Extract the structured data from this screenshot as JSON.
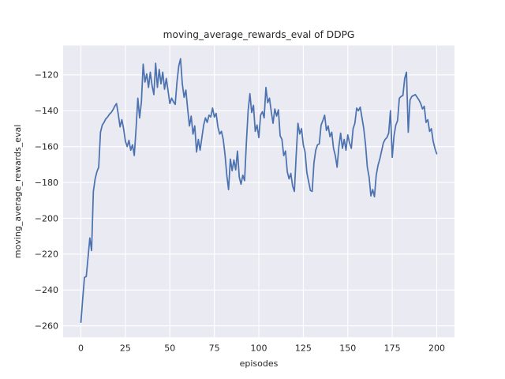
{
  "figure": {
    "title": "moving_average_rewards_eval of DDPG",
    "background": "#ffffff"
  },
  "chart_data": {
    "type": "line",
    "title": "moving_average_rewards_eval of DDPG",
    "xlabel": "episodes",
    "ylabel": "moving_average_rewards_eval",
    "x_ticks": [
      0,
      25,
      50,
      75,
      100,
      125,
      150,
      175,
      200
    ],
    "y_ticks": [
      -120,
      -140,
      -160,
      -180,
      -200,
      -220,
      -240,
      -260
    ],
    "xlim": [
      -10,
      210
    ],
    "ylim": [
      -266.4,
      -103.6
    ],
    "grid": true,
    "legend_position": "none",
    "plot_background": "#eaeaf2",
    "grid_color": "#ffffff",
    "line_color": "#4c72b0",
    "series": [
      {
        "name": "moving_average_rewards_eval",
        "x_start": 0,
        "x_step": 1,
        "values": [
          -258,
          -245,
          -233,
          -232.5,
          -222,
          -211,
          -218,
          -185,
          -178,
          -174,
          -171.5,
          -152,
          -148,
          -146.5,
          -144.5,
          -143.5,
          -142,
          -141,
          -139.5,
          -137.5,
          -136,
          -142,
          -149,
          -145,
          -150,
          -157,
          -160,
          -156.5,
          -162,
          -159,
          -165,
          -150,
          -133,
          -144,
          -135,
          -114,
          -124,
          -119.5,
          -127,
          -118.5,
          -126,
          -131,
          -113.5,
          -127,
          -117,
          -125,
          -118.5,
          -128,
          -122,
          -129,
          -136,
          -133,
          -135,
          -136.5,
          -124,
          -115,
          -111,
          -125,
          -132.5,
          -128.5,
          -139,
          -148.5,
          -143,
          -153,
          -148.5,
          -163,
          -156,
          -162,
          -155,
          -148,
          -144,
          -146.5,
          -142.5,
          -143.5,
          -138.5,
          -143.5,
          -141.5,
          -149,
          -153,
          -151.5,
          -156,
          -164.5,
          -176,
          -184,
          -167,
          -173.5,
          -167.5,
          -173,
          -162.5,
          -177,
          -181,
          -176,
          -179,
          -158,
          -140,
          -130.5,
          -141,
          -137,
          -151.5,
          -148,
          -155,
          -142.5,
          -140.5,
          -144,
          -127,
          -135.5,
          -133,
          -140.5,
          -147,
          -139,
          -143,
          -139.5,
          -154,
          -156,
          -165,
          -162.5,
          -174,
          -178,
          -175,
          -182,
          -185,
          -165,
          -147,
          -153,
          -150,
          -159,
          -163,
          -174.5,
          -179.5,
          -184.5,
          -185,
          -169,
          -162,
          -159,
          -158.5,
          -148,
          -145.5,
          -142.5,
          -151,
          -148.5,
          -154.5,
          -152,
          -161,
          -165,
          -171.5,
          -160,
          -152.5,
          -161,
          -156,
          -162,
          -153.5,
          -158,
          -161,
          -150,
          -147,
          -138.5,
          -140,
          -138,
          -144,
          -150,
          -159,
          -171.5,
          -177,
          -187.5,
          -184,
          -188,
          -176,
          -170.5,
          -167,
          -162.5,
          -158,
          -156,
          -155,
          -152.5,
          -140,
          -166,
          -154,
          -148,
          -145.5,
          -133,
          -132,
          -131.5,
          -122,
          -118.5,
          -152,
          -134,
          -132,
          -131.5,
          -131,
          -132.5,
          -134,
          -136,
          -139,
          -137.5,
          -146.5,
          -145,
          -151.5,
          -150,
          -157,
          -161,
          -164
        ]
      }
    ]
  }
}
